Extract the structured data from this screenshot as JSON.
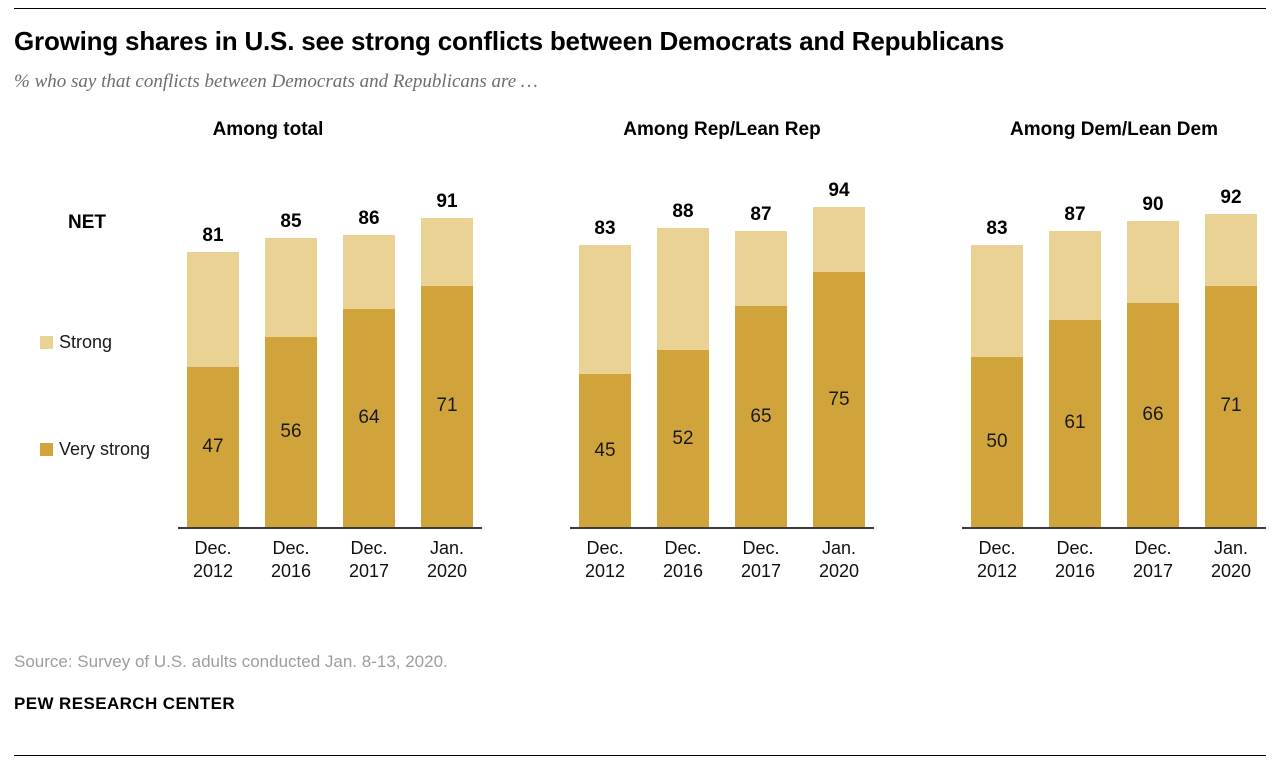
{
  "page": {
    "title": "Growing shares in U.S. see strong conflicts between Democrats and Republicans",
    "subtitle": "% who say that conflicts between Democrats and Republicans are …",
    "source": "Source: Survey of U.S. adults conducted Jan. 8-13, 2020.",
    "brand": "PEW RESEARCH CENTER"
  },
  "legend": {
    "net_label": "NET",
    "items": [
      {
        "label": "Strong",
        "color": "#e9d293"
      },
      {
        "label": "Very strong",
        "color": "#d1a33b"
      }
    ]
  },
  "chart_data": {
    "type": "bar",
    "stacked": true,
    "ylim": [
      0,
      100
    ],
    "grid": false,
    "legend_position": "left",
    "categories": [
      [
        "Dec.",
        "2012"
      ],
      [
        "Dec.",
        "2016"
      ],
      [
        "Dec.",
        "2017"
      ],
      [
        "Jan.",
        "2020"
      ]
    ],
    "colors": {
      "Strong": "#e9d293",
      "Very strong": "#d1a33b"
    },
    "panels": [
      {
        "title": "Among total",
        "net": [
          81,
          85,
          86,
          91
        ],
        "series": [
          {
            "name": "Very strong",
            "values": [
              47,
              56,
              64,
              71
            ]
          },
          {
            "name": "Strong",
            "values": [
              34,
              29,
              22,
              20
            ]
          }
        ]
      },
      {
        "title": "Among Rep/Lean Rep",
        "net": [
          83,
          88,
          87,
          94
        ],
        "series": [
          {
            "name": "Very strong",
            "values": [
              45,
              52,
              65,
              75
            ]
          },
          {
            "name": "Strong",
            "values": [
              38,
              36,
              22,
              19
            ]
          }
        ]
      },
      {
        "title": "Among Dem/Lean Dem",
        "net": [
          83,
          87,
          90,
          92
        ],
        "series": [
          {
            "name": "Very strong",
            "values": [
              50,
              61,
              66,
              71
            ]
          },
          {
            "name": "Strong",
            "values": [
              33,
              26,
              24,
              21
            ]
          }
        ]
      }
    ]
  }
}
